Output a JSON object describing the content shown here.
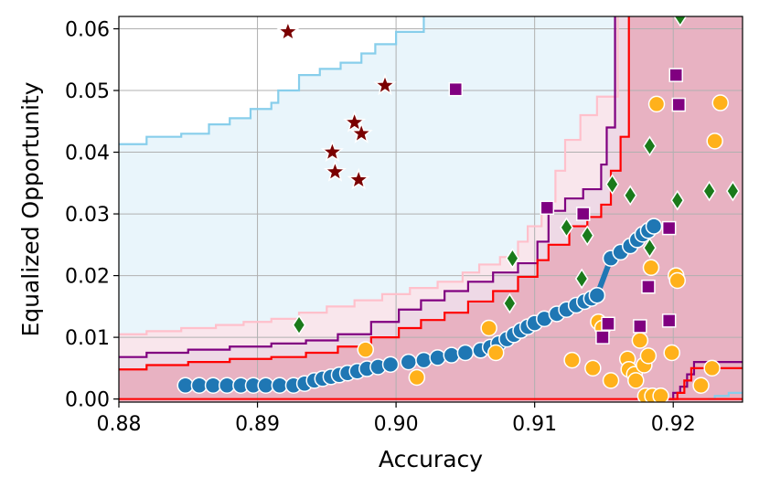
{
  "chart_data": {
    "type": "scatter",
    "xlabel": "Accuracy",
    "ylabel": "Equalized Opportunity",
    "xlim": [
      0.88,
      0.925
    ],
    "ylim": [
      -0.0005,
      0.062
    ],
    "x_ticks": [
      "0.88",
      "0.89",
      "0.90",
      "0.91",
      "0.92"
    ],
    "y_ticks": [
      "0.00",
      "0.01",
      "0.02",
      "0.03",
      "0.04",
      "0.05",
      "0.06"
    ],
    "grid": true,
    "colors": {
      "light_blue": "#87ceeb",
      "light_blue_fill": "#e9f5fb",
      "pink": "#ffc0cb",
      "purple": "#800080",
      "red": "#ff0000",
      "red_fill": "#e8b2c2",
      "circle_blue": "#1f77b4",
      "circle_orange": "#ffb11b",
      "square_purple": "#800080",
      "diamond_green": "#1a7a1a",
      "star_maroon": "#7a0000"
    },
    "fronts": [
      {
        "color": "#87ceeb",
        "points": [
          [
            0.88,
            0.0413
          ],
          [
            0.882,
            0.0425
          ],
          [
            0.8845,
            0.043
          ],
          [
            0.8865,
            0.0445
          ],
          [
            0.888,
            0.0455
          ],
          [
            0.8895,
            0.047
          ],
          [
            0.891,
            0.048
          ],
          [
            0.8915,
            0.05
          ],
          [
            0.893,
            0.0525
          ],
          [
            0.8945,
            0.0535
          ],
          [
            0.896,
            0.0545
          ],
          [
            0.8975,
            0.056
          ],
          [
            0.8985,
            0.0575
          ],
          [
            0.9,
            0.0595
          ],
          [
            0.902,
            0.062
          ]
        ]
      },
      {
        "color": "#ffc0cb",
        "points": [
          [
            0.88,
            0.0105
          ],
          [
            0.882,
            0.011
          ],
          [
            0.8845,
            0.0115
          ],
          [
            0.887,
            0.012
          ],
          [
            0.889,
            0.0125
          ],
          [
            0.891,
            0.013
          ],
          [
            0.893,
            0.014
          ],
          [
            0.895,
            0.015
          ],
          [
            0.897,
            0.016
          ],
          [
            0.899,
            0.017
          ],
          [
            0.901,
            0.018
          ],
          [
            0.903,
            0.019
          ],
          [
            0.9048,
            0.0205
          ],
          [
            0.906,
            0.0218
          ],
          [
            0.9075,
            0.023
          ],
          [
            0.9088,
            0.0255
          ],
          [
            0.9095,
            0.028
          ],
          [
            0.9105,
            0.032
          ],
          [
            0.9115,
            0.037
          ],
          [
            0.9122,
            0.042
          ],
          [
            0.9133,
            0.046
          ],
          [
            0.9145,
            0.049
          ],
          [
            0.916,
            0.062
          ]
        ]
      },
      {
        "color": "#800080",
        "points": [
          [
            0.88,
            0.0068
          ],
          [
            0.882,
            0.0075
          ],
          [
            0.885,
            0.008
          ],
          [
            0.888,
            0.0085
          ],
          [
            0.891,
            0.009
          ],
          [
            0.8935,
            0.0095
          ],
          [
            0.8958,
            0.0105
          ],
          [
            0.8982,
            0.0125
          ],
          [
            0.9002,
            0.0145
          ],
          [
            0.9018,
            0.016
          ],
          [
            0.9035,
            0.0175
          ],
          [
            0.9052,
            0.019
          ],
          [
            0.907,
            0.0205
          ],
          [
            0.9088,
            0.022
          ],
          [
            0.9102,
            0.0255
          ],
          [
            0.911,
            0.0305
          ],
          [
            0.9122,
            0.0325
          ],
          [
            0.9135,
            0.034
          ],
          [
            0.9148,
            0.038
          ],
          [
            0.9152,
            0.044
          ],
          [
            0.9158,
            0.062
          ]
        ]
      },
      {
        "color": "#ff0000",
        "points": [
          [
            0.88,
            0.0048
          ],
          [
            0.882,
            0.0055
          ],
          [
            0.885,
            0.006
          ],
          [
            0.888,
            0.0065
          ],
          [
            0.891,
            0.0068
          ],
          [
            0.8935,
            0.0075
          ],
          [
            0.8958,
            0.0085
          ],
          [
            0.8982,
            0.01
          ],
          [
            0.9002,
            0.0115
          ],
          [
            0.9018,
            0.0128
          ],
          [
            0.9035,
            0.014
          ],
          [
            0.9052,
            0.0158
          ],
          [
            0.907,
            0.0175
          ],
          [
            0.9088,
            0.0198
          ],
          [
            0.9102,
            0.0225
          ],
          [
            0.911,
            0.025
          ],
          [
            0.9125,
            0.028
          ],
          [
            0.9138,
            0.0295
          ],
          [
            0.9148,
            0.0315
          ],
          [
            0.9155,
            0.037
          ],
          [
            0.9162,
            0.0425
          ],
          [
            0.9168,
            0.062
          ]
        ]
      }
    ],
    "bottom_fronts": [
      {
        "color": "#800080",
        "points": [
          [
            0.9195,
            0.0
          ],
          [
            0.92,
            0.001
          ],
          [
            0.9205,
            0.002
          ],
          [
            0.921,
            0.004
          ],
          [
            0.9215,
            0.006
          ],
          [
            0.925,
            0.006
          ]
        ]
      },
      {
        "color": "#ff0000",
        "points": [
          [
            0.9195,
            0.0
          ],
          [
            0.9203,
            0.001
          ],
          [
            0.9208,
            0.003
          ],
          [
            0.9213,
            0.005
          ],
          [
            0.925,
            0.005
          ]
        ]
      },
      {
        "color": "#87ceeb",
        "points": [
          [
            0.9225,
            0.0
          ],
          [
            0.923,
            0.0005
          ],
          [
            0.924,
            0.001
          ],
          [
            0.925,
            0.001
          ]
        ]
      }
    ],
    "series": [
      {
        "marker": "circle",
        "color": "#1f77b4",
        "line": [
          [
            0.9145,
            0.0168
          ],
          [
            0.9155,
            0.0228
          ]
        ],
        "x": [
          0.8848,
          0.8858,
          0.8868,
          0.8878,
          0.8888,
          0.8897,
          0.8906,
          0.8916,
          0.8926,
          0.8934,
          0.8941,
          0.8947,
          0.8953,
          0.8959,
          0.8965,
          0.8972,
          0.8979,
          0.8987,
          0.8996,
          0.9009,
          0.902,
          0.903,
          0.904,
          0.905,
          0.9061,
          0.9068,
          0.9074,
          0.908,
          0.9085,
          0.909,
          0.9095,
          0.91,
          0.9107,
          0.9116,
          0.9123,
          0.913,
          0.9136,
          0.9141,
          0.9145,
          0.9155,
          0.9162,
          0.9169,
          0.9174,
          0.9178,
          0.9182,
          0.9186
        ],
        "y": [
          0.0022,
          0.0022,
          0.0022,
          0.0022,
          0.0022,
          0.0022,
          0.0022,
          0.0022,
          0.0022,
          0.0025,
          0.003,
          0.0033,
          0.0036,
          0.0039,
          0.0042,
          0.0045,
          0.0049,
          0.0052,
          0.0056,
          0.006,
          0.0063,
          0.0067,
          0.0071,
          0.0075,
          0.0079,
          0.0084,
          0.009,
          0.0097,
          0.0104,
          0.0111,
          0.0117,
          0.0123,
          0.013,
          0.0138,
          0.0145,
          0.0152,
          0.0158,
          0.0163,
          0.0168,
          0.0228,
          0.0238,
          0.0248,
          0.0258,
          0.0267,
          0.0273,
          0.028
        ]
      },
      {
        "marker": "circle",
        "color": "#ffb11b",
        "x": [
          0.8978,
          0.9015,
          0.9067,
          0.9072,
          0.9127,
          0.9142,
          0.9146,
          0.9149,
          0.9155,
          0.9167,
          0.9168,
          0.9172,
          0.9173,
          0.9176,
          0.9179,
          0.918,
          0.9182,
          0.9184,
          0.9185,
          0.9188,
          0.9191,
          0.9199,
          0.9202,
          0.9203,
          0.922,
          0.9228,
          0.923,
          0.9234
        ],
        "y": [
          0.008,
          0.0035,
          0.0115,
          0.0075,
          0.0063,
          0.005,
          0.0125,
          0.0115,
          0.003,
          0.0065,
          0.0048,
          0.004,
          0.003,
          0.0095,
          0.0055,
          0.0005,
          0.007,
          0.0213,
          0.0005,
          0.0478,
          0.0005,
          0.0075,
          0.02,
          0.0192,
          0.0022,
          0.005,
          0.0418,
          0.048
        ]
      },
      {
        "marker": "square",
        "color": "#800080",
        "x": [
          0.9043,
          0.9109,
          0.9135,
          0.9149,
          0.9153,
          0.9176,
          0.9182,
          0.9197,
          0.9197,
          0.9202,
          0.9204
        ],
        "y": [
          0.0502,
          0.031,
          0.03,
          0.01,
          0.0122,
          0.0118,
          0.0182,
          0.0277,
          0.0127,
          0.0525,
          0.0477
        ]
      },
      {
        "marker": "diamond",
        "color": "#1a7a1a",
        "x": [
          0.893,
          0.9084,
          0.9082,
          0.9123,
          0.9134,
          0.9138,
          0.9156,
          0.9169,
          0.9183,
          0.9183,
          0.9203,
          0.9205,
          0.9226,
          0.9243
        ],
        "y": [
          0.012,
          0.0228,
          0.0155,
          0.0278,
          0.0195,
          0.0265,
          0.0348,
          0.033,
          0.041,
          0.0245,
          0.0322,
          0.062,
          0.0337,
          0.0337
        ]
      },
      {
        "marker": "star",
        "color": "#7a0000",
        "x": [
          0.8922,
          0.8992,
          0.897,
          0.8975,
          0.8954,
          0.8956,
          0.8973
        ],
        "y": [
          0.0595,
          0.0508,
          0.0448,
          0.043,
          0.04,
          0.0368,
          0.0355
        ]
      }
    ]
  }
}
